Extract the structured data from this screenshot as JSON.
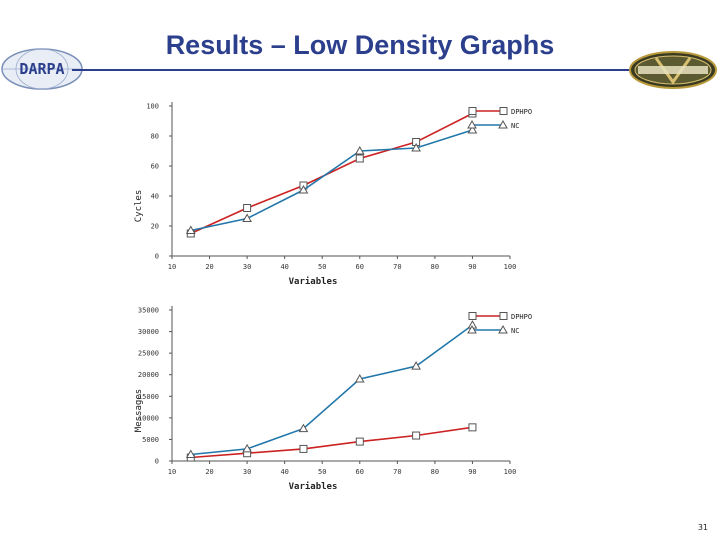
{
  "slide": {
    "title": "Results – Low Density Graphs",
    "page_number": "31"
  },
  "logos": {
    "left_text": "DARPA"
  },
  "colors": {
    "series_dpop": "#cc2222",
    "series_oc": "#2277aa",
    "title": "#2b3f8c"
  },
  "chart_data": [
    {
      "type": "line",
      "xlabel": "Variables",
      "ylabel": "Cycles",
      "xlim": [
        10,
        100
      ],
      "ylim": [
        0,
        100
      ],
      "x_ticks": [
        "10",
        "20",
        "30",
        "40",
        "50",
        "60",
        "70",
        "80",
        "90",
        "100"
      ],
      "y_ticks": [
        "0",
        "20",
        "40",
        "60",
        "80",
        "100"
      ],
      "legend": "top-right",
      "series": [
        {
          "name": "DPHPO",
          "marker": "square",
          "x": [
            15,
            30,
            45,
            60,
            75,
            90
          ],
          "y": [
            15,
            32,
            47,
            65,
            76,
            95
          ]
        },
        {
          "name": "NC",
          "marker": "triangle",
          "x": [
            15,
            30,
            45,
            60,
            75,
            90
          ],
          "y": [
            17,
            25,
            44,
            70,
            72,
            84
          ]
        }
      ]
    },
    {
      "type": "line",
      "xlabel": "Variables",
      "ylabel": "Messages",
      "xlim": [
        10,
        100
      ],
      "ylim": [
        0,
        35000
      ],
      "x_ticks": [
        "10",
        "20",
        "30",
        "40",
        "50",
        "60",
        "70",
        "80",
        "90",
        "100"
      ],
      "y_ticks": [
        "0",
        "5000",
        "10000",
        "15000",
        "20000",
        "25000",
        "30000",
        "35000"
      ],
      "legend": "top-right",
      "series": [
        {
          "name": "DPHPO",
          "marker": "square",
          "x": [
            15,
            30,
            45,
            60,
            75,
            90
          ],
          "y": [
            800,
            1800,
            2800,
            4500,
            5900,
            7800
          ]
        },
        {
          "name": "NC",
          "marker": "triangle",
          "x": [
            15,
            30,
            45,
            60,
            75,
            90
          ],
          "y": [
            1500,
            2800,
            7500,
            19000,
            22000,
            31500
          ]
        }
      ]
    }
  ]
}
